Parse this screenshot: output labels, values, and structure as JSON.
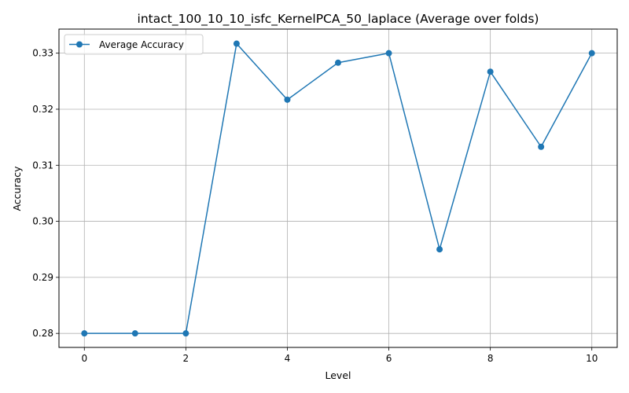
{
  "chart_data": {
    "type": "line",
    "title": "intact_100_10_10_isfc_KernelPCA_50_laplace (Average over folds)",
    "xlabel": "Level",
    "ylabel": "Accuracy",
    "x": [
      0,
      1,
      2,
      3,
      4,
      5,
      6,
      7,
      8,
      9,
      10
    ],
    "series": [
      {
        "name": "Average Accuracy",
        "color": "#1f77b4",
        "marker": "circle",
        "values": [
          0.28,
          0.28,
          0.28,
          0.3317,
          0.3217,
          0.3283,
          0.33,
          0.295,
          0.3267,
          0.3133,
          0.33
        ]
      }
    ],
    "xlim": [
      -0.5,
      10.5
    ],
    "ylim": [
      0.2775,
      0.3343
    ],
    "xticks": [
      0,
      2,
      4,
      6,
      8,
      10
    ],
    "yticks": [
      0.28,
      0.29,
      0.3,
      0.31,
      0.32,
      0.33
    ],
    "ytick_labels": [
      "0.28",
      "0.29",
      "0.30",
      "0.31",
      "0.32",
      "0.33"
    ],
    "grid": true,
    "legend_position": "top-left"
  }
}
